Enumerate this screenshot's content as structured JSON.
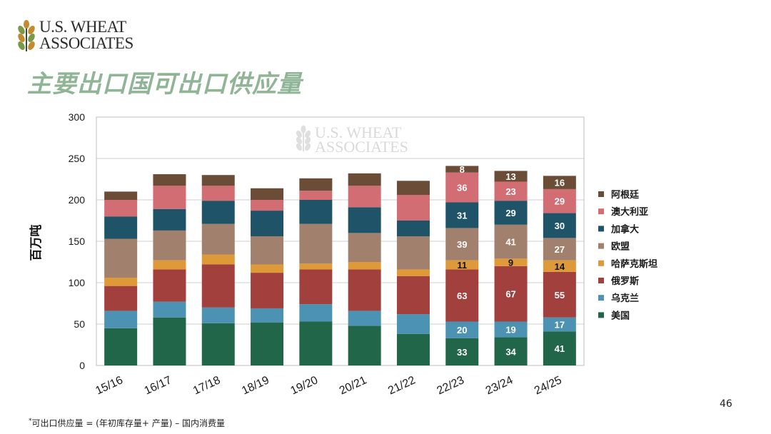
{
  "brand": {
    "logo_line1": "U.S. WHEAT",
    "logo_line2": "ASSOCIATES"
  },
  "page": {
    "title": "主要出口国可出口供应量",
    "number": "46",
    "footnote_mark": "*",
    "footnote": "可出口供应量 = (年初库存量+ 产量) – 国内消费量"
  },
  "colors": {
    "美国": "#22664a",
    "乌克兰": "#4b92b3",
    "俄罗斯": "#a2403e",
    "哈萨克斯坦": "#de9a38",
    "欧盟": "#a1806d",
    "加拿大": "#1f5468",
    "澳大利亚": "#d16d73",
    "阿根廷": "#6b4c36"
  },
  "chart_data": {
    "type": "bar",
    "stacked": true,
    "categories": [
      "15/16",
      "16/17",
      "17/18",
      "18/19",
      "19/20",
      "20/21",
      "21/22",
      "22/23",
      "23/24",
      "24/25"
    ],
    "ylabel": "百万吨",
    "ylim": [
      0,
      300
    ],
    "yticks": [
      0,
      50,
      100,
      150,
      200,
      250,
      300
    ],
    "grid": true,
    "legend_position": "right",
    "watermark": {
      "line1": "U.S. WHEAT",
      "line2": "ASSOCIATES"
    },
    "series": [
      {
        "name": "美国",
        "values": [
          45,
          58,
          51,
          52,
          53,
          48,
          38,
          33,
          34,
          41
        ],
        "labels": [
          null,
          null,
          null,
          null,
          null,
          null,
          null,
          "33",
          "34",
          "41"
        ]
      },
      {
        "name": "乌克兰",
        "values": [
          21,
          19,
          19,
          17,
          21,
          18,
          24,
          20,
          19,
          17
        ],
        "labels": [
          null,
          null,
          null,
          null,
          null,
          null,
          null,
          "20",
          "19",
          "17"
        ]
      },
      {
        "name": "俄罗斯",
        "values": [
          30,
          39,
          52,
          43,
          42,
          50,
          46,
          63,
          67,
          55
        ],
        "labels": [
          null,
          null,
          null,
          null,
          null,
          null,
          null,
          "63",
          "67",
          "55"
        ]
      },
      {
        "name": "哈萨克斯坦",
        "values": [
          10,
          11,
          12,
          10,
          7,
          9,
          8,
          11,
          9,
          14
        ],
        "labels": [
          null,
          null,
          null,
          null,
          null,
          null,
          null,
          "11",
          "9",
          "14"
        ]
      },
      {
        "name": "欧盟",
        "values": [
          47,
          36,
          37,
          34,
          48,
          35,
          40,
          39,
          41,
          27
        ],
        "labels": [
          null,
          null,
          null,
          null,
          null,
          null,
          null,
          "39",
          "41",
          "27"
        ]
      },
      {
        "name": "加拿大",
        "values": [
          27,
          26,
          28,
          31,
          29,
          31,
          19,
          31,
          29,
          30
        ],
        "labels": [
          null,
          null,
          null,
          null,
          null,
          null,
          null,
          "31",
          "29",
          "30"
        ]
      },
      {
        "name": "澳大利亚",
        "values": [
          20,
          28,
          18,
          13,
          11,
          26,
          31,
          36,
          23,
          29
        ],
        "labels": [
          null,
          null,
          null,
          null,
          null,
          null,
          null,
          "36",
          "23",
          "29"
        ]
      },
      {
        "name": "阿根廷",
        "values": [
          10,
          14,
          13,
          14,
          15,
          15,
          17,
          8,
          13,
          16
        ],
        "labels": [
          null,
          null,
          null,
          null,
          null,
          null,
          null,
          "8",
          "13",
          "16"
        ]
      }
    ]
  }
}
